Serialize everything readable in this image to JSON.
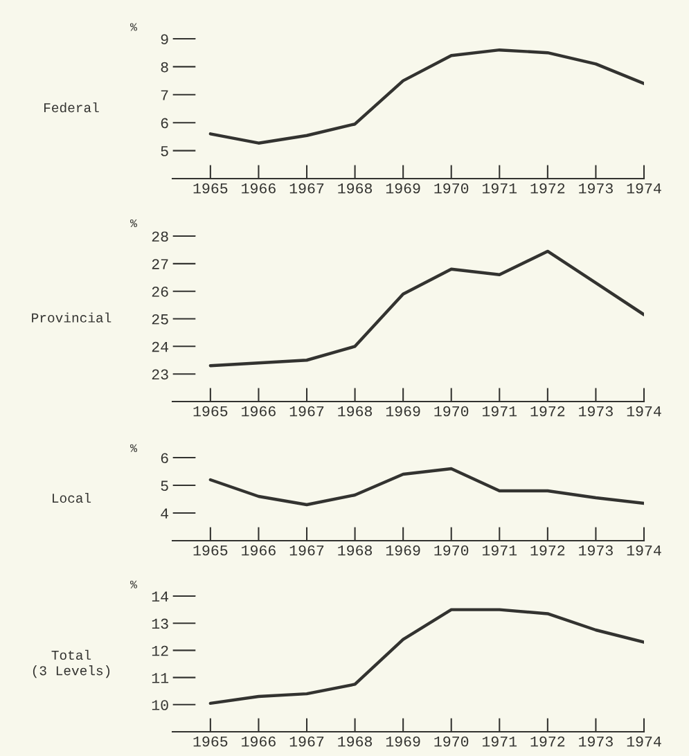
{
  "chart_data": [
    {
      "type": "line",
      "title": "Federal",
      "ylabel": "%",
      "x": [
        1965,
        1966,
        1967,
        1968,
        1969,
        1970,
        1971,
        1972,
        1973,
        1974
      ],
      "xlim": [
        1964.7,
        1974
      ],
      "xticks": [
        1965,
        1966,
        1967,
        1968,
        1969,
        1970,
        1971,
        1972,
        1973,
        1974
      ],
      "ylim": [
        4,
        9
      ],
      "yticks": [
        5,
        6,
        7,
        8,
        9
      ],
      "grid": false,
      "series": [
        {
          "color": "#333330",
          "values": [
            5.6,
            5.27,
            5.54,
            5.95,
            7.5,
            8.4,
            8.6,
            8.5,
            8.1,
            7.4
          ]
        }
      ]
    },
    {
      "type": "line",
      "title": "Provincial",
      "ylabel": "%",
      "x": [
        1965,
        1966,
        1967,
        1968,
        1969,
        1970,
        1971,
        1972,
        1973,
        1974
      ],
      "xlim": [
        1964.7,
        1974
      ],
      "xticks": [
        1965,
        1966,
        1967,
        1968,
        1969,
        1970,
        1971,
        1972,
        1973,
        1974
      ],
      "ylim": [
        22,
        28
      ],
      "yticks": [
        23,
        24,
        25,
        26,
        27,
        28
      ],
      "grid": false,
      "series": [
        {
          "color": "#333330",
          "values": [
            23.3,
            23.4,
            23.5,
            24.0,
            25.9,
            26.8,
            26.6,
            27.45,
            26.3,
            25.15
          ]
        }
      ]
    },
    {
      "type": "line",
      "title": "Local",
      "ylabel": "%",
      "x": [
        1965,
        1966,
        1967,
        1968,
        1969,
        1970,
        1971,
        1972,
        1973,
        1974
      ],
      "xlim": [
        1964.7,
        1974
      ],
      "xticks": [
        1965,
        1966,
        1967,
        1968,
        1969,
        1970,
        1971,
        1972,
        1973,
        1974
      ],
      "ylim": [
        3,
        6
      ],
      "yticks": [
        4,
        5,
        6
      ],
      "grid": false,
      "series": [
        {
          "color": "#333330",
          "values": [
            5.2,
            4.6,
            4.3,
            4.65,
            5.4,
            5.6,
            4.8,
            4.8,
            4.55,
            4.35
          ]
        }
      ]
    },
    {
      "type": "line",
      "title": "Total\n(3 Levels)",
      "ylabel": "%",
      "x": [
        1965,
        1966,
        1967,
        1968,
        1969,
        1970,
        1971,
        1972,
        1973,
        1974
      ],
      "xlim": [
        1964.7,
        1974
      ],
      "xticks": [
        1965,
        1966,
        1967,
        1968,
        1969,
        1970,
        1971,
        1972,
        1973,
        1974
      ],
      "ylim": [
        9,
        14
      ],
      "yticks": [
        10,
        11,
        12,
        13,
        14
      ],
      "grid": false,
      "series": [
        {
          "color": "#333330",
          "values": [
            10.05,
            10.3,
            10.4,
            10.75,
            12.4,
            13.5,
            13.5,
            13.35,
            12.75,
            12.3
          ]
        }
      ]
    }
  ]
}
